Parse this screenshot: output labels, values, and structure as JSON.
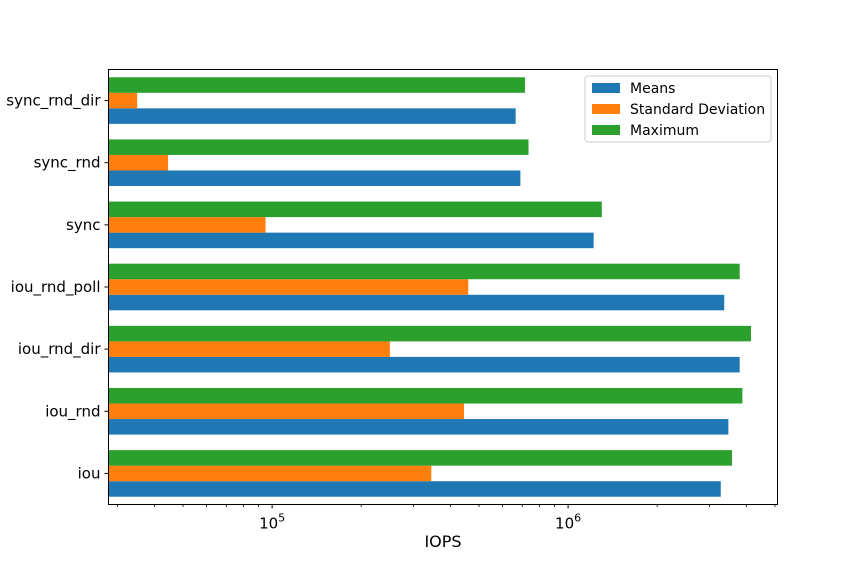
{
  "chart_data": {
    "type": "bar",
    "orientation": "horizontal",
    "xscale": "log",
    "xlabel": "IOPS",
    "xlim": [
      28000,
      5100000
    ],
    "xticks": [
      {
        "value": 100000,
        "base": "10",
        "exp": "5"
      },
      {
        "value": 1000000,
        "base": "10",
        "exp": "6"
      }
    ],
    "categories": [
      "sync_rnd_dir",
      "sync_rnd",
      "sync",
      "iou_rnd_poll",
      "iou_rnd_dir",
      "iou_rnd",
      "iou"
    ],
    "series": [
      {
        "name": "Means",
        "color": "#1f77b4",
        "values": [
          665000,
          690000,
          1220000,
          3370000,
          3800000,
          3480000,
          3280000
        ]
      },
      {
        "name": "Standard Deviation",
        "color": "#ff7f0e",
        "values": [
          35000,
          44500,
          95000,
          460000,
          250000,
          445000,
          345000
        ]
      },
      {
        "name": "Maximum",
        "color": "#2ca02c",
        "values": [
          715000,
          735000,
          1300000,
          3800000,
          4150000,
          3880000,
          3580000
        ]
      }
    ],
    "legend": "top-right",
    "grid": false
  }
}
